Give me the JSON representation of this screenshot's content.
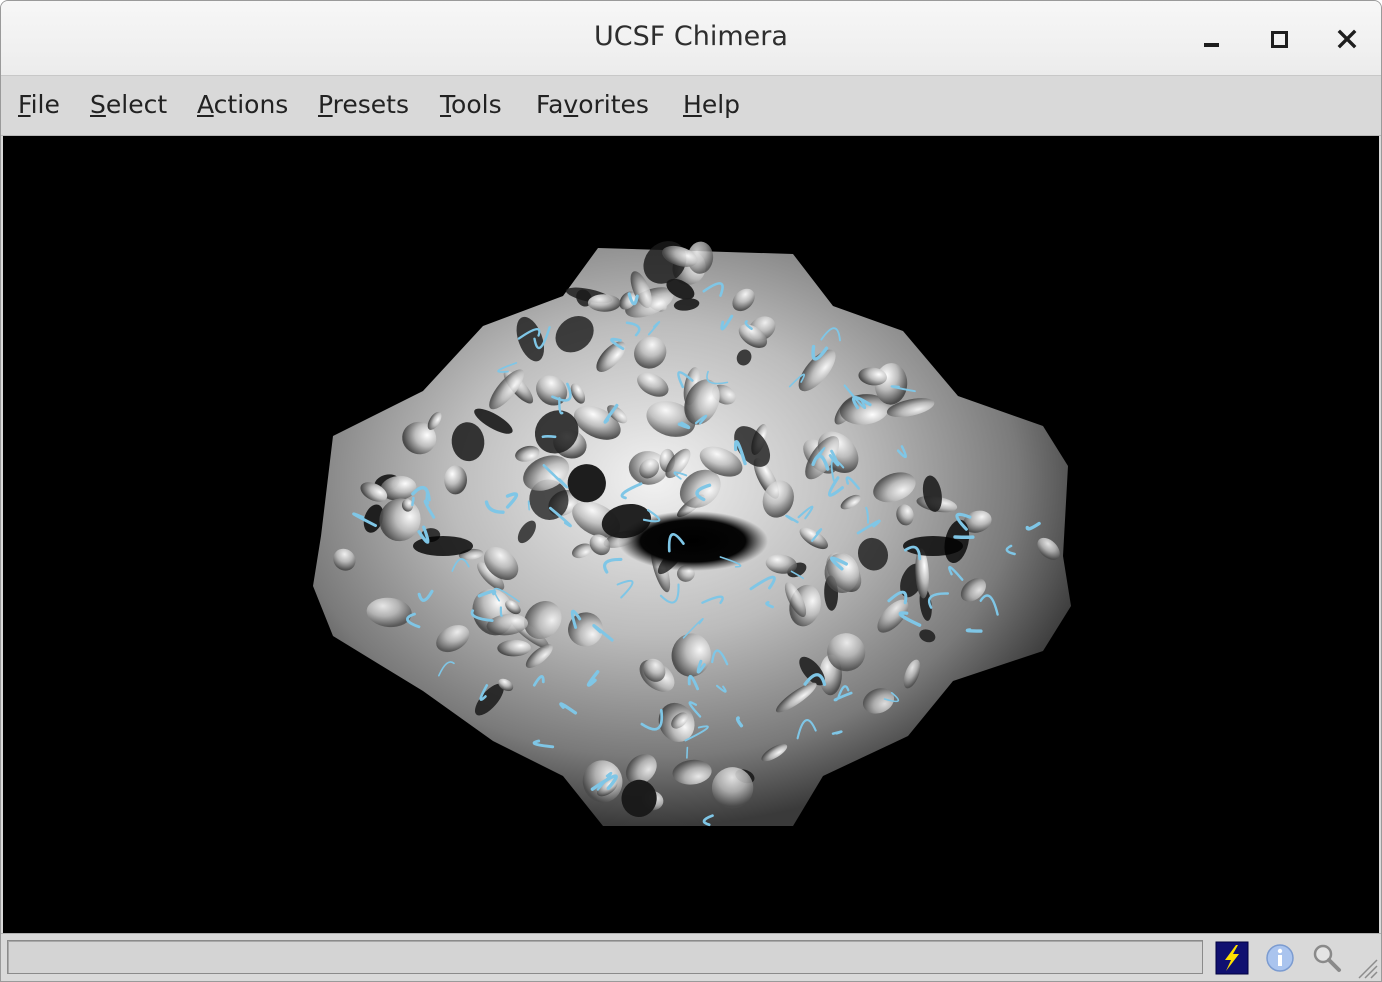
{
  "window": {
    "title": "UCSF Chimera"
  },
  "menubar": {
    "items": [
      {
        "pre": "",
        "ul": "F",
        "post": "ile"
      },
      {
        "pre": "",
        "ul": "S",
        "post": "elect"
      },
      {
        "pre": "",
        "ul": "A",
        "post": "ctions"
      },
      {
        "pre": "",
        "ul": "P",
        "post": "resets"
      },
      {
        "pre": "",
        "ul": "T",
        "post": "ools"
      },
      {
        "pre": "Fa",
        "ul": "v",
        "post": "orites"
      },
      {
        "pre": "",
        "ul": "H",
        "post": "elp"
      }
    ]
  },
  "viewport": {
    "background": "#000000",
    "surface_color": "#b9b9b9",
    "ribbon_color": "#7fc6e6"
  },
  "statusbar": {
    "message": "",
    "icons": [
      "lightning-bolt-icon",
      "info-icon",
      "magnifier-icon"
    ]
  }
}
